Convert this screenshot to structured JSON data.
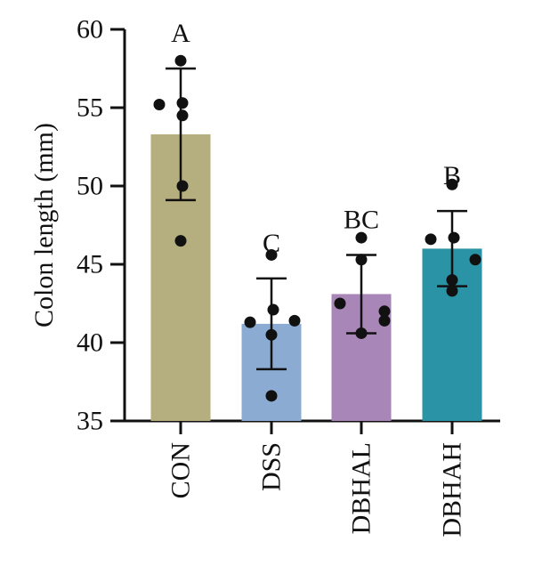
{
  "chart_data": {
    "type": "bar",
    "title": "",
    "xlabel": "",
    "ylabel": "Colon length (mm)",
    "ylim": [
      35,
      60
    ],
    "yticks": [
      35,
      40,
      45,
      50,
      55,
      60
    ],
    "grid": false,
    "legend": "none",
    "categories": [
      "CON",
      "DSS",
      "DBHAL",
      "DBHAH"
    ],
    "values": [
      53.3,
      41.2,
      43.1,
      46.0
    ],
    "sd": [
      4.2,
      2.9,
      2.5,
      2.4
    ],
    "significance": [
      "A",
      "C",
      "BC",
      "B"
    ],
    "points": [
      [
        58.0,
        55.2,
        55.3,
        54.5,
        50.0,
        46.5
      ],
      [
        45.6,
        41.3,
        42.1,
        41.4,
        40.5,
        36.6
      ],
      [
        46.7,
        42.5,
        45.3,
        41.4,
        42.0,
        40.6
      ],
      [
        50.1,
        46.6,
        46.7,
        45.3,
        44.0,
        43.3
      ]
    ],
    "colors": [
      "#b5ae7e",
      "#8cabd3",
      "#a986b8",
      "#2a93a6"
    ]
  }
}
